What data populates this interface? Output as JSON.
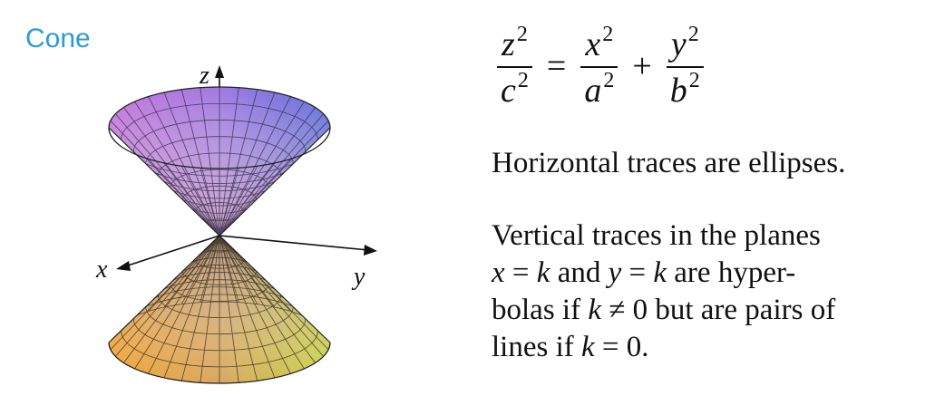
{
  "title": "Cone",
  "axes": {
    "z": "z",
    "x": "x",
    "y": "y"
  },
  "equation": {
    "lhs_num": "z",
    "lhs_den": "c",
    "eq": "=",
    "t1_num": "x",
    "t1_den": "a",
    "plus": "+",
    "t2_num": "y",
    "t2_den": "b",
    "exp": "2"
  },
  "text": {
    "horizontal": "Horizontal traces are ellipses.",
    "vertical_lines": [
      {
        "parts": [
          {
            "t": "Vertical traces in the planes",
            "i": false
          }
        ]
      },
      {
        "parts": [
          {
            "t": "x",
            "i": true
          },
          {
            "t": " = ",
            "i": false
          },
          {
            "t": "k",
            "i": true
          },
          {
            "t": " and ",
            "i": false
          },
          {
            "t": "y",
            "i": true
          },
          {
            "t": " = ",
            "i": false
          },
          {
            "t": "k",
            "i": true
          },
          {
            "t": " are hyper-",
            "i": false
          }
        ]
      },
      {
        "parts": [
          {
            "t": "bolas if ",
            "i": false
          },
          {
            "t": "k",
            "i": true
          },
          {
            "t": " ≠ 0 but are pairs of",
            "i": false
          }
        ]
      },
      {
        "parts": [
          {
            "t": "lines if ",
            "i": false
          },
          {
            "t": "k",
            "i": true
          },
          {
            "t": " = 0.",
            "i": false
          }
        ]
      }
    ]
  },
  "colors": {
    "title": "#2e9ad8",
    "top_left": "#c070d8",
    "top_right": "#5a6ad8",
    "top_apex": "#c8a8b8",
    "bottom_left": "#f0a030",
    "bottom_right": "#c8d048",
    "bottom_apex": "#b09080"
  }
}
